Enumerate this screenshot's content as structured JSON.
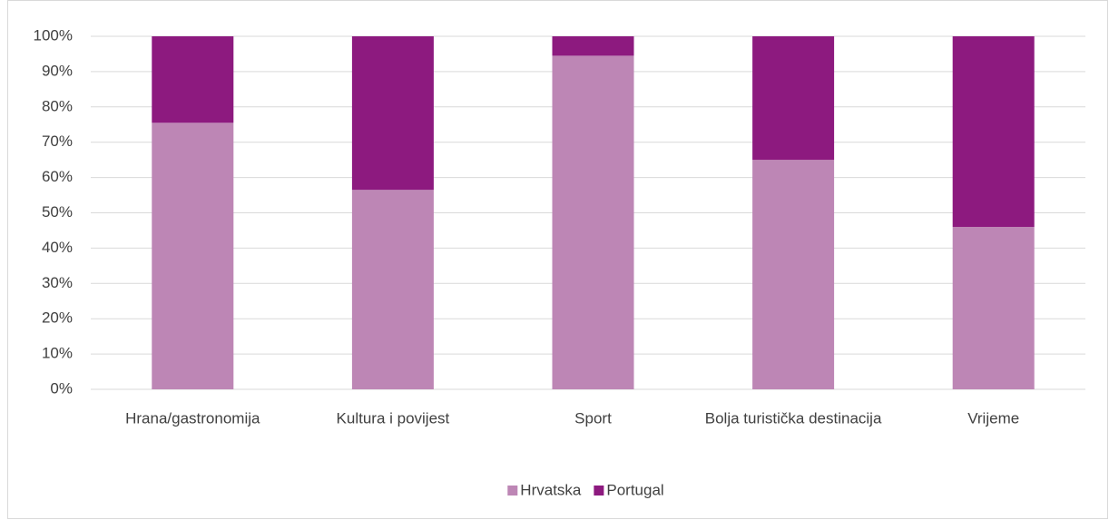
{
  "chart_data": {
    "type": "bar",
    "stacked": true,
    "categories": [
      "Hrana/gastronomija",
      "Kultura i povijest",
      "Sport",
      "Bolja turistička destinacija",
      "Vrijeme"
    ],
    "series": [
      {
        "name": "Hrvatska",
        "color": "#bd86b5",
        "values": [
          75.5,
          56.5,
          94.5,
          65,
          46
        ]
      },
      {
        "name": "Portugal",
        "color": "#8d1a7f",
        "values": [
          24.5,
          43.5,
          5.5,
          35,
          54
        ]
      }
    ],
    "ylim": [
      0,
      100
    ],
    "yticks": [
      {
        "value": 0,
        "label": "0%"
      },
      {
        "value": 10,
        "label": "10%"
      },
      {
        "value": 20,
        "label": "20%"
      },
      {
        "value": 30,
        "label": "30%"
      },
      {
        "value": 40,
        "label": "40%"
      },
      {
        "value": 50,
        "label": "50%"
      },
      {
        "value": 60,
        "label": "60%"
      },
      {
        "value": 70,
        "label": "70%"
      },
      {
        "value": 80,
        "label": "80%"
      },
      {
        "value": 90,
        "label": "90%"
      },
      {
        "value": 100,
        "label": "100%"
      }
    ],
    "grid": true,
    "legend": "bottom"
  }
}
